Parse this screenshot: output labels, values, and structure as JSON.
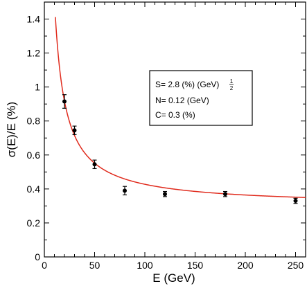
{
  "chart_data": {
    "type": "scatter",
    "xlabel": "E (GeV)",
    "ylabel": "σ(E)/E (%)",
    "xlim": [
      0,
      260
    ],
    "ylim": [
      0,
      1.5
    ],
    "x_ticks": [
      0,
      50,
      100,
      150,
      200,
      250
    ],
    "x_tick_labels": [
      "0",
      "50",
      "100",
      "150",
      "200",
      "250"
    ],
    "y_ticks": [
      0,
      0.2,
      0.4,
      0.6,
      0.8,
      1.0,
      1.2,
      1.4
    ],
    "y_tick_labels": [
      "0",
      "0.2",
      "0.4",
      "0.6",
      "0.8",
      "1",
      "1.2",
      "1.4"
    ],
    "grid": false,
    "series": [
      {
        "marker_color": "#000000",
        "points": [
          {
            "x": 20,
            "y": 0.915,
            "err": 0.04
          },
          {
            "x": 30,
            "y": 0.745,
            "err": 0.025
          },
          {
            "x": 50,
            "y": 0.545,
            "err": 0.025
          },
          {
            "x": 80,
            "y": 0.39,
            "err": 0.025
          },
          {
            "x": 120,
            "y": 0.37,
            "err": 0.015
          },
          {
            "x": 180,
            "y": 0.37,
            "err": 0.015
          },
          {
            "x": 250,
            "y": 0.33,
            "err": 0.015
          }
        ]
      }
    ],
    "fit": {
      "color": "#e02a1c",
      "S": 2.8,
      "N": 0.12,
      "C": 0.3,
      "x_start": 11
    },
    "legend": {
      "position": "center-right",
      "line1_main": "S= 2.8 (%) (GeV)",
      "line1_sup_num": "1",
      "line1_sup_den": "2",
      "line2": "N= 0.12 (GeV)",
      "line3": "C= 0.3 (%)"
    }
  }
}
